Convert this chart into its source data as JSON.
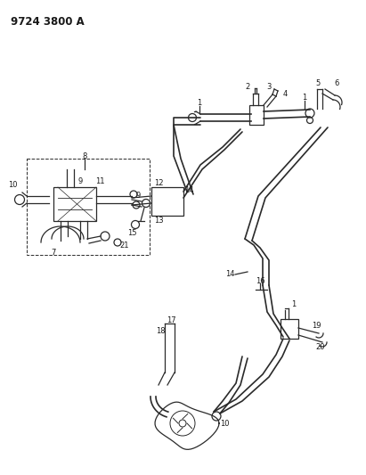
{
  "title": "9724 3800 A",
  "bg_color": "#ffffff",
  "line_color": "#2a2a2a",
  "text_color": "#1a1a1a",
  "label_fontsize": 6.0,
  "fig_width": 4.11,
  "fig_height": 5.33,
  "dpi": 100
}
